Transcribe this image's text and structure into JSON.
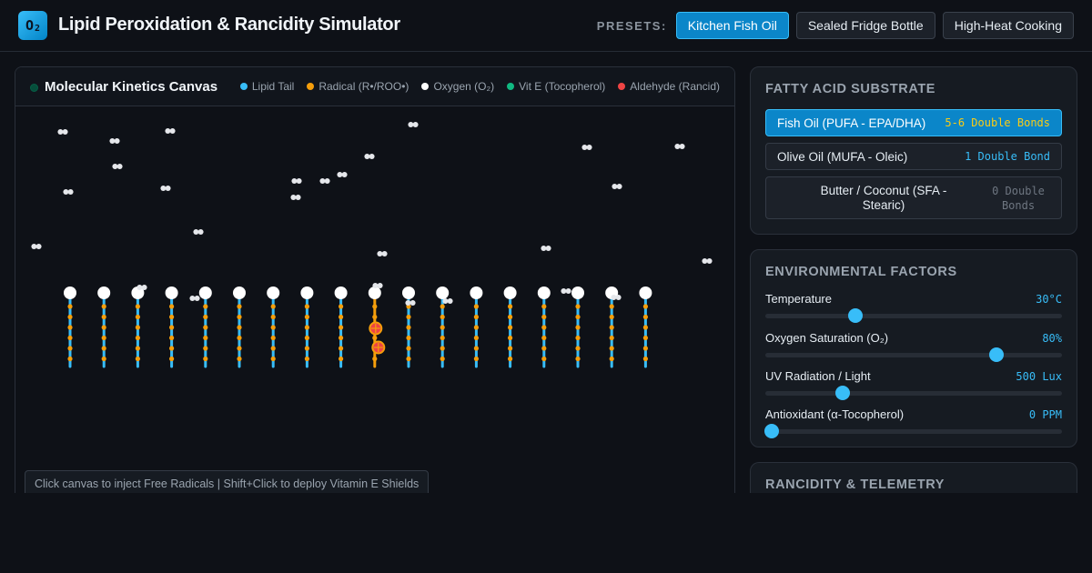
{
  "header": {
    "logo_text": "O",
    "logo_sub": "2",
    "title": "Lipid Peroxidation & Rancidity Simulator",
    "presets_label": "PRESETS:",
    "presets": [
      {
        "label": "Kitchen Fish Oil",
        "active": true
      },
      {
        "label": "Sealed Fridge Bottle",
        "active": false
      },
      {
        "label": "High-Heat Cooking",
        "active": false
      }
    ]
  },
  "canvas": {
    "title": "Molecular Kinetics Canvas",
    "legend": [
      {
        "label": "Lipid Tail",
        "color": "#38bdf8"
      },
      {
        "label": "Radical (R•/ROO•)",
        "color": "#f59e0b"
      },
      {
        "label": "Oxygen (O₂)",
        "color": "#ffffff"
      },
      {
        "label": "Vit E (Tocopherol)",
        "color": "#10b981"
      },
      {
        "label": "Aldehyde (Rancid)",
        "color": "#ef4444"
      }
    ],
    "hint": "Click canvas to inject Free Radicals | Shift+Click to deploy Vitamin E Shields",
    "lipid_count": 18,
    "oxidized_lipid_index": 9
  },
  "substrate": {
    "title": "FATTY ACID SUBSTRATE",
    "options": [
      {
        "name": "Fish Oil (PUFA - EPA/DHA)",
        "bonds": "5-6 Double Bonds",
        "active": true
      },
      {
        "name": "Olive Oil (MUFA - Oleic)",
        "bonds": "1 Double Bond",
        "active": false
      },
      {
        "name": "Butter / Coconut (SFA - Stearic)",
        "bonds": "0 Double Bonds",
        "active": false
      }
    ]
  },
  "environment": {
    "title": "ENVIRONMENTAL FACTORS",
    "sliders": [
      {
        "label": "Temperature",
        "value": "30°C",
        "fraction": 0.305
      },
      {
        "label": "Oxygen Saturation (O₂)",
        "value": "80%",
        "fraction": 0.78
      },
      {
        "label": "UV Radiation / Light",
        "value": "500 Lux",
        "fraction": 0.26
      },
      {
        "label": "Antioxidant (α-Tocopherol)",
        "value": "0 PPM",
        "fraction": 0.02
      }
    ]
  },
  "telemetry": {
    "title": "RANCIDITY & TELEMETRY"
  },
  "colors": {
    "accent": "#38bdf8",
    "radical": "#f59e0b",
    "aldehyde": "#ef4444",
    "vitamin_e": "#10b981"
  }
}
